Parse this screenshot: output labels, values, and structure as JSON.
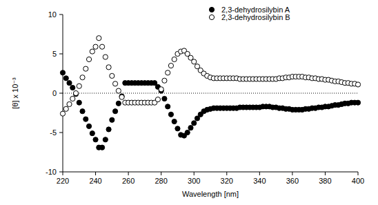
{
  "chart_data": {
    "type": "scatter",
    "x_label": "Wavelength [nm]",
    "y_label": "[θ] x 10⁻³",
    "x": [
      220,
      222,
      224,
      226,
      228,
      230,
      232,
      234,
      236,
      238,
      240,
      242,
      244,
      246,
      248,
      250,
      252,
      254,
      256,
      258,
      260,
      262,
      264,
      266,
      268,
      270,
      272,
      274,
      276,
      278,
      280,
      282,
      284,
      286,
      288,
      290,
      292,
      294,
      296,
      298,
      300,
      302,
      304,
      306,
      308,
      310,
      312,
      314,
      316,
      318,
      320,
      322,
      324,
      326,
      328,
      330,
      332,
      334,
      336,
      338,
      340,
      342,
      344,
      346,
      348,
      350,
      352,
      354,
      356,
      358,
      360,
      362,
      364,
      366,
      368,
      370,
      372,
      374,
      376,
      378,
      380,
      382,
      384,
      386,
      388,
      390,
      392,
      394,
      396,
      398,
      400
    ],
    "series": [
      {
        "name": "2,3-dehydrosilybin A",
        "color": "#000000",
        "marker": "circle",
        "values": [
          2.6,
          1.9,
          1.3,
          0.7,
          -0.1,
          -1.2,
          -2.3,
          -3.3,
          -4.2,
          -5.1,
          -5.9,
          -6.9,
          -6.9,
          -5.9,
          -4.6,
          -3.4,
          -2.3,
          -1.3,
          -0.4,
          1.3,
          1.3,
          1.3,
          1.3,
          1.3,
          1.3,
          1.3,
          1.3,
          1.3,
          1.3,
          0.8,
          0.3,
          -0.7,
          -1.7,
          -2.7,
          -3.6,
          -4.5,
          -5.3,
          -5.4,
          -5.0,
          -4.4,
          -3.8,
          -3.2,
          -2.7,
          -2.3,
          -2.1,
          -2.0,
          -1.9,
          -1.9,
          -1.9,
          -1.9,
          -1.9,
          -1.9,
          -1.9,
          -1.9,
          -1.8,
          -1.8,
          -1.8,
          -1.8,
          -1.8,
          -1.8,
          -1.8,
          -1.7,
          -1.7,
          -1.7,
          -1.8,
          -1.8,
          -1.9,
          -1.9,
          -2.0,
          -2.0,
          -2.1,
          -2.1,
          -2.1,
          -2.1,
          -2.0,
          -2.0,
          -1.9,
          -1.9,
          -1.8,
          -1.8,
          -1.7,
          -1.7,
          -1.6,
          -1.5,
          -1.5,
          -1.4,
          -1.3,
          -1.3,
          -1.2,
          -1.2,
          -1.2
        ]
      },
      {
        "name": "2,3-dehydrosilybin B",
        "color": "#000000",
        "marker": "open-circle",
        "values": [
          -2.6,
          -2.0,
          -1.4,
          -0.7,
          0.0,
          0.9,
          2.0,
          3.1,
          4.3,
          5.3,
          5.9,
          7.0,
          5.9,
          4.6,
          3.3,
          2.2,
          1.2,
          0.3,
          -0.5,
          -1.2,
          -1.2,
          -1.2,
          -1.2,
          -1.2,
          -1.2,
          -1.2,
          -1.2,
          -1.2,
          -1.2,
          -0.8,
          0.5,
          1.6,
          2.6,
          3.5,
          4.3,
          5.0,
          5.3,
          5.4,
          5.0,
          4.5,
          4.0,
          3.4,
          2.9,
          2.5,
          2.2,
          2.0,
          1.9,
          1.9,
          1.9,
          1.9,
          1.9,
          1.9,
          1.9,
          1.9,
          1.8,
          1.8,
          1.8,
          1.8,
          1.8,
          1.8,
          1.8,
          1.8,
          1.8,
          1.8,
          1.8,
          1.8,
          1.9,
          1.9,
          2.0,
          2.0,
          2.1,
          2.1,
          2.1,
          2.1,
          2.0,
          2.0,
          1.9,
          1.9,
          1.8,
          1.8,
          1.7,
          1.7,
          1.6,
          1.5,
          1.5,
          1.4,
          1.3,
          1.3,
          1.2,
          1.2,
          1.1
        ]
      }
    ],
    "xlim": [
      220,
      400
    ],
    "xticks": [
      220,
      240,
      260,
      280,
      300,
      320,
      340,
      360,
      380,
      400
    ],
    "ylim": [
      -10,
      10
    ],
    "yticks": [
      -10,
      -5,
      0,
      5,
      10
    ],
    "legend": "upper right",
    "line_style": "dotted"
  }
}
